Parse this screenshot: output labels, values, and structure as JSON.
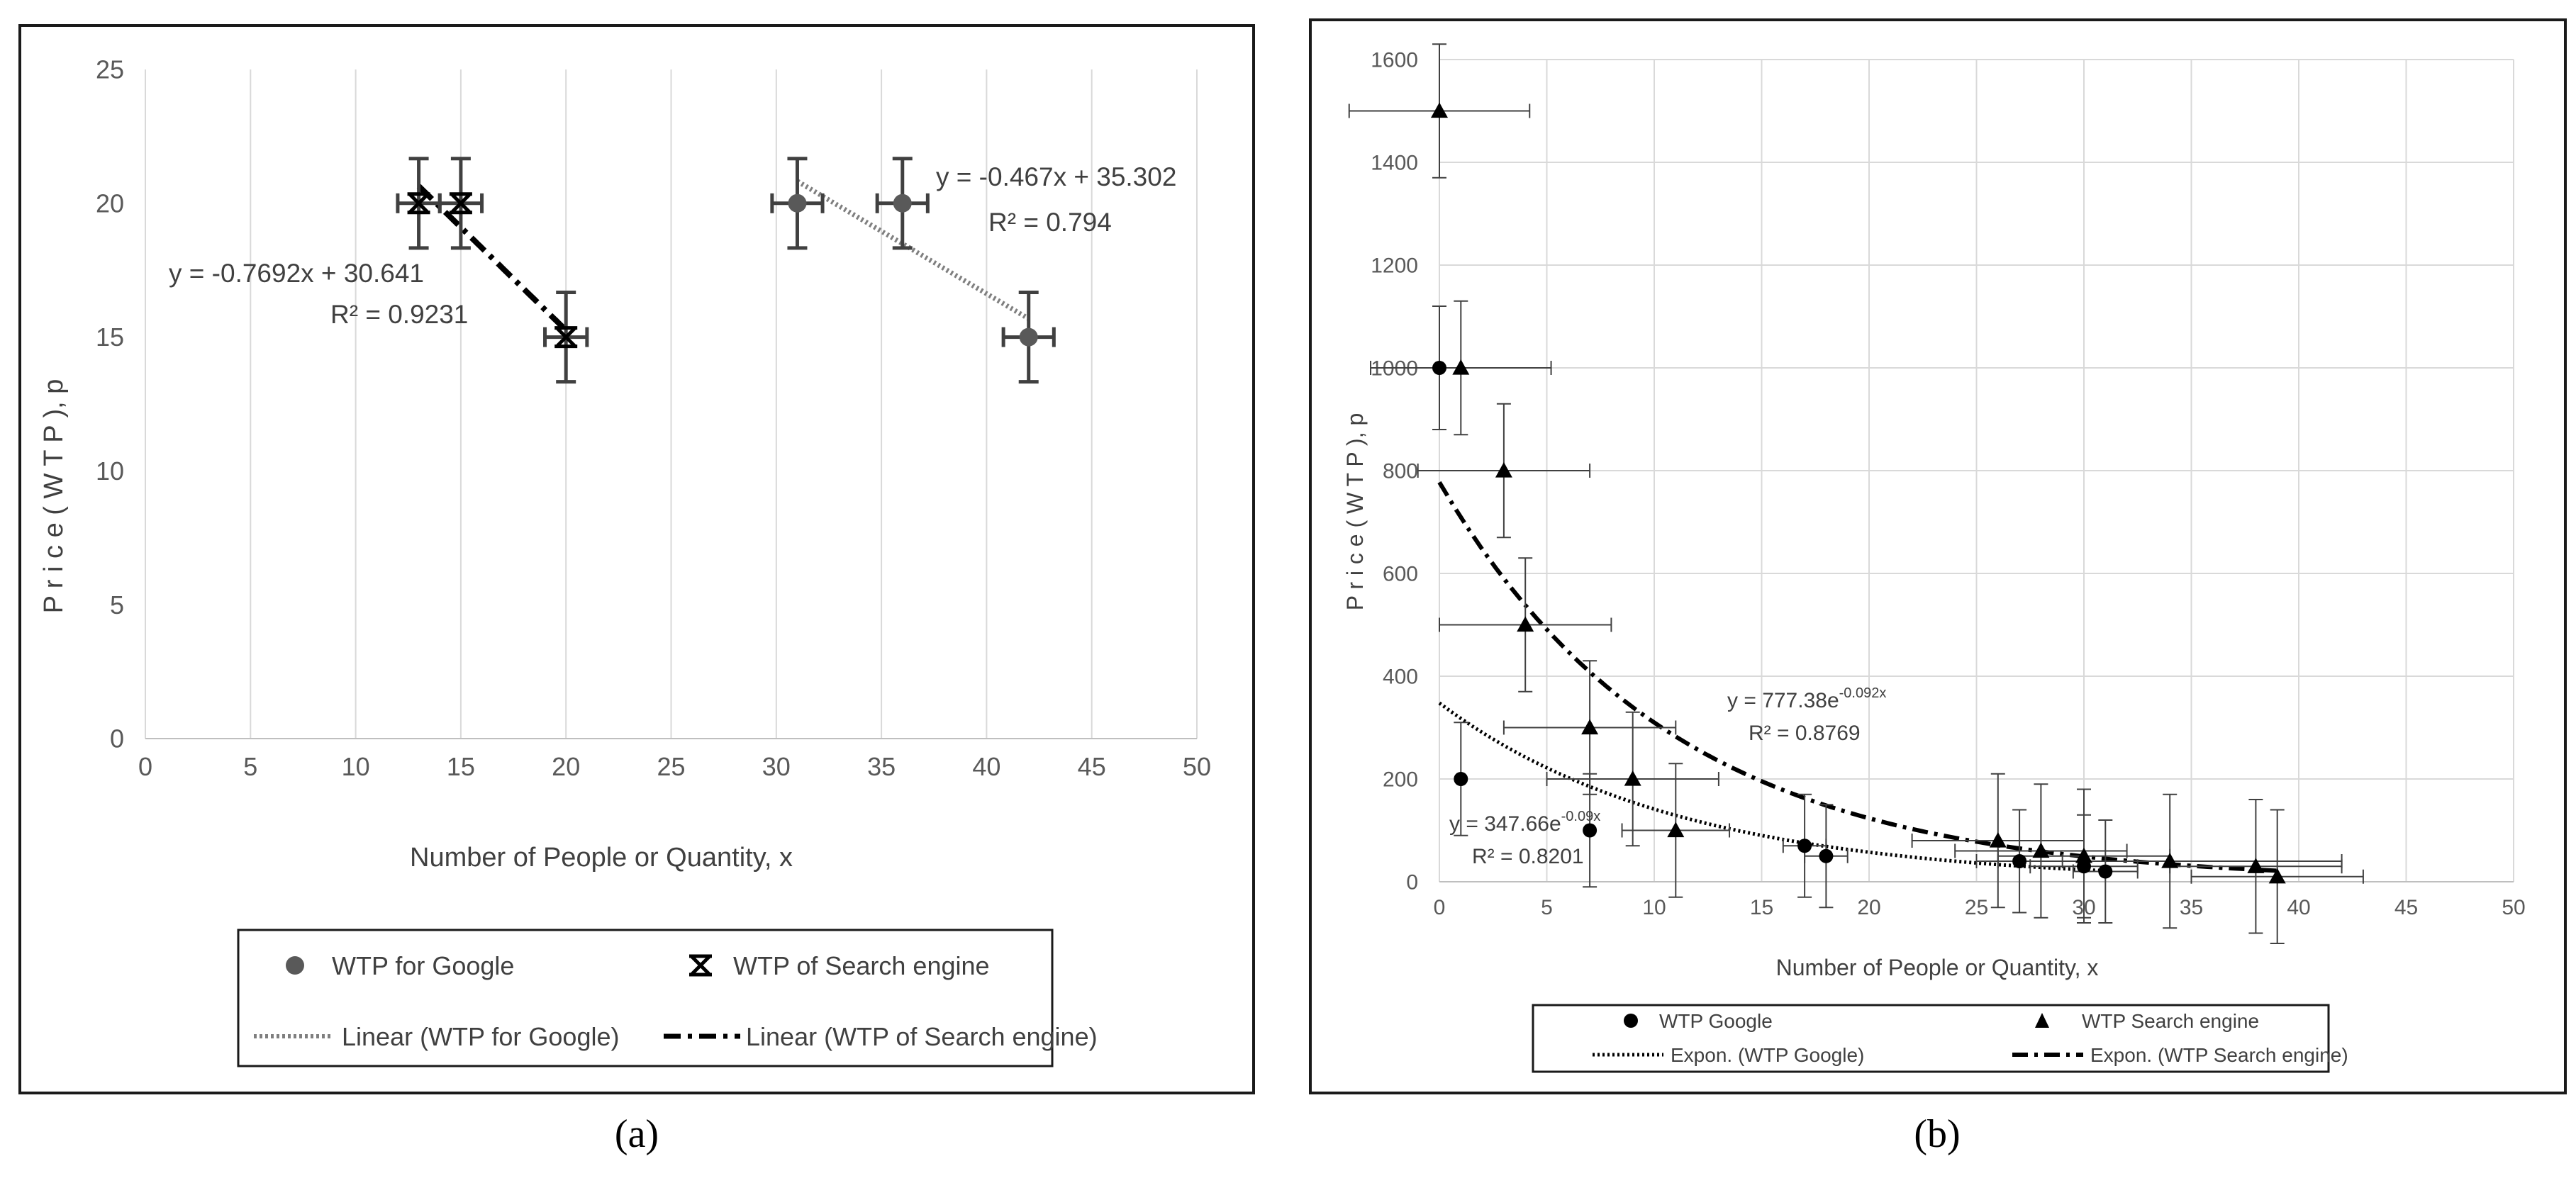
{
  "captions": {
    "a": "(a)",
    "b": "(b)"
  },
  "colors": {
    "frame": "#1a1a1a",
    "grid": "#d9d9d9",
    "axis_text": "#595959",
    "google_marker_a": "#595959",
    "search_marker_a": "#000000",
    "google_trend_a": "#7f7f7f",
    "search_trend_a": "#000000",
    "series_b": "#000000"
  },
  "chart_data": [
    {
      "id": "a",
      "type": "scatter",
      "title": "",
      "xlabel": "Number  of People or Quantity, x",
      "ylabel": "P r i c e  ( W T P ),  p",
      "xlim": [
        0,
        50
      ],
      "ylim": [
        0,
        25
      ],
      "xticks": [
        0,
        5,
        10,
        15,
        20,
        25,
        30,
        35,
        40,
        45,
        50
      ],
      "yticks": [
        0,
        5,
        10,
        15,
        20,
        25
      ],
      "grid": "vertical",
      "legend_position": "bottom",
      "series": [
        {
          "name": "WTP for Google",
          "marker": "circle",
          "x": [
            31,
            36,
            42
          ],
          "y": [
            20,
            20,
            15
          ],
          "xerr": [
            1.2,
            1.2,
            1.2
          ],
          "yerr": [
            1.67,
            1.67,
            1.67
          ]
        },
        {
          "name": "WTP of Search engine",
          "marker": "cross",
          "x": [
            13,
            15,
            20
          ],
          "y": [
            20,
            20,
            15
          ],
          "xerr": [
            1.0,
            1.0,
            1.0
          ],
          "yerr": [
            1.67,
            1.67,
            1.67
          ]
        }
      ],
      "trendlines": [
        {
          "name": "Linear (WTP for Google)",
          "kind": "linear",
          "slope": -0.467,
          "intercept": 35.302,
          "x_range": [
            31,
            42
          ],
          "style": "dotted",
          "equation": "y = -0.467x + 35.302",
          "r2": "R² = 0.794"
        },
        {
          "name": "Linear (WTP of Search engine)",
          "kind": "linear",
          "slope": -0.7692,
          "intercept": 30.641,
          "x_range": [
            13,
            20
          ],
          "style": "dashdot",
          "equation": "y = -0.7692x + 30.641",
          "r2": "R² = 0.9231"
        }
      ]
    },
    {
      "id": "b",
      "type": "scatter",
      "title": "",
      "xlabel": "Number  of People or Quantity, x",
      "ylabel": "P r i c e  ( W T P ),  p",
      "xlim": [
        0,
        50
      ],
      "ylim": [
        0,
        1600
      ],
      "xticks": [
        0,
        5,
        10,
        15,
        20,
        25,
        30,
        35,
        40,
        45,
        50
      ],
      "yticks": [
        0,
        200,
        400,
        600,
        800,
        1000,
        1200,
        1400,
        1600
      ],
      "grid": "both",
      "legend_position": "bottom",
      "series": [
        {
          "name": "WTP Google",
          "marker": "circle",
          "x": [
            0,
            1,
            7,
            17,
            18,
            27,
            30,
            31
          ],
          "y": [
            1000,
            200,
            100,
            70,
            50,
            40,
            30,
            20
          ],
          "xerr": [
            0,
            0,
            0,
            1.0,
            1.0,
            2.0,
            2.5,
            1.5
          ],
          "yerr": [
            120,
            110,
            110,
            100,
            100,
            100,
            100,
            100
          ]
        },
        {
          "name": "WTP Search engine",
          "marker": "triangle",
          "x": [
            0,
            1,
            3,
            4,
            7,
            9,
            11,
            26,
            28,
            30,
            34,
            38,
            39
          ],
          "y": [
            1500,
            1000,
            800,
            500,
            300,
            200,
            100,
            80,
            60,
            50,
            40,
            30,
            10
          ],
          "xerr": [
            4.2,
            4.2,
            4.0,
            4.0,
            4.0,
            4.0,
            2.5,
            4.0,
            4.0,
            4.0,
            8.0,
            4.0,
            4.0
          ],
          "yerr": [
            130,
            130,
            130,
            130,
            130,
            130,
            130,
            130,
            130,
            130,
            130,
            130,
            130
          ]
        }
      ],
      "trendlines": [
        {
          "name": "Expon. (WTP Google)",
          "kind": "exponential",
          "a": 347.66,
          "b": -0.09,
          "x_range": [
            0,
            31
          ],
          "style": "dotted",
          "equation": "y = 347.66e",
          "exponent": "-0.09x",
          "r2": "R² = 0.8201"
        },
        {
          "name": "Expon. (WTP Search engine)",
          "kind": "exponential",
          "a": 777.38,
          "b": -0.092,
          "x_range": [
            0,
            39
          ],
          "style": "dashdot",
          "equation": "y = 777.38e",
          "exponent": "-0.092x",
          "r2": "R² = 0.8769"
        }
      ]
    }
  ]
}
